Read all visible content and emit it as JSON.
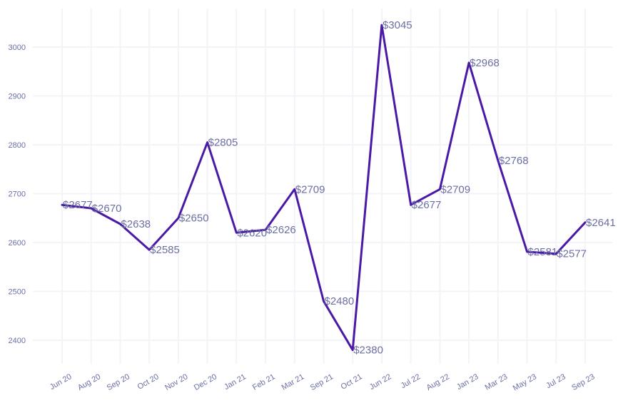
{
  "chart_data": {
    "type": "line",
    "title": "",
    "xlabel": "",
    "ylabel": "",
    "categories": [
      "Jun 20",
      "Aug 20",
      "Sep 20",
      "Oct 20",
      "Nov 20",
      "Dec 20",
      "Jan 21",
      "Feb 21",
      "Mar 21",
      "Sep 21",
      "Oct 21",
      "Jun 22",
      "Jul 22",
      "Aug 22",
      "Jan 23",
      "Mar 23",
      "May 23",
      "Jul 23",
      "Sep 23"
    ],
    "series": [
      {
        "values": [
          2677,
          2670,
          2638,
          2585,
          2650,
          2805,
          2620,
          2626,
          2709,
          2480,
          2380,
          3045,
          2677,
          2709,
          2968,
          2768,
          2581,
          2577,
          2641
        ],
        "labels": [
          "$2677",
          "$2670",
          "$2638",
          "$2585",
          "$2650",
          "$2805",
          "$2620",
          "$2626",
          "$2709",
          "$2480",
          "$2380",
          "$3045",
          "$2677",
          "$2709",
          "$2968",
          "$2768",
          "$2581",
          "$2577",
          "$2641"
        ]
      }
    ],
    "yticks": [
      2400,
      2500,
      2600,
      2700,
      2800,
      2900,
      3000
    ],
    "ylim": [
      2350,
      3080
    ],
    "grid": true,
    "legend": "none",
    "line_color": "#4a1aa6",
    "text_color": "#6b6fa3",
    "grid_color": "#f4f4f8"
  }
}
